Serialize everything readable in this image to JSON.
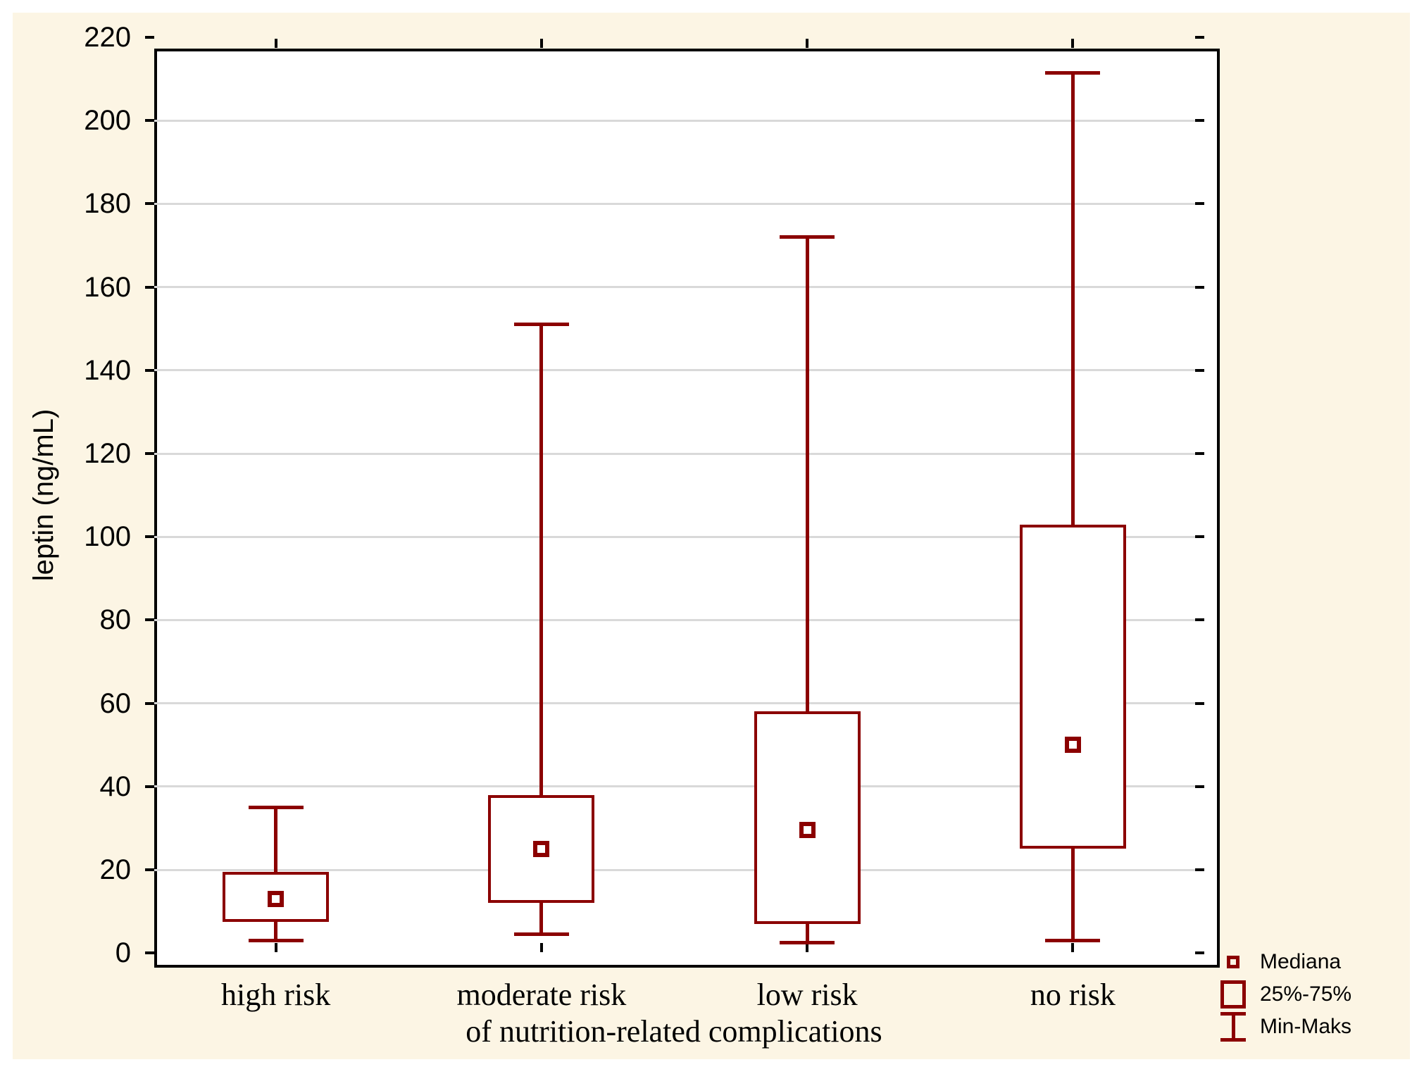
{
  "chart_data": {
    "type": "boxplot",
    "title": "",
    "ylabel": "leptin (ng/mL)",
    "xlabel": "of nutrition-related complications",
    "categories": [
      "high risk",
      "moderate risk",
      "low risk",
      "no risk"
    ],
    "series": [
      {
        "category": "high risk",
        "min": 3,
        "q1": 7.5,
        "median": 13,
        "q3": 19.5,
        "max": 35
      },
      {
        "category": "moderate risk",
        "min": 4.5,
        "q1": 12,
        "median": 25,
        "q3": 38,
        "max": 151
      },
      {
        "category": "low risk",
        "min": 2.5,
        "q1": 7,
        "median": 29.5,
        "q3": 58,
        "max": 172
      },
      {
        "category": "no risk",
        "min": 3,
        "q1": 25,
        "median": 50,
        "q3": 103,
        "max": 211.5
      }
    ],
    "ylim": [
      0,
      220
    ],
    "yticks": [
      0,
      20,
      40,
      60,
      80,
      100,
      120,
      140,
      160,
      180,
      200,
      220
    ],
    "grid": "horizontal",
    "legend": {
      "position": "bottom-right",
      "items": [
        {
          "label": "Mediana",
          "marker": "small-square"
        },
        {
          "label": "25%-75%",
          "marker": "box"
        },
        {
          "label": "Min-Maks",
          "marker": "whisker"
        }
      ]
    }
  },
  "colors": {
    "series": "#8B0000",
    "background": "#FCF5E4",
    "plot_background": "#FFFFFF",
    "gridline": "#D9D9D9",
    "axis": "#000000"
  }
}
